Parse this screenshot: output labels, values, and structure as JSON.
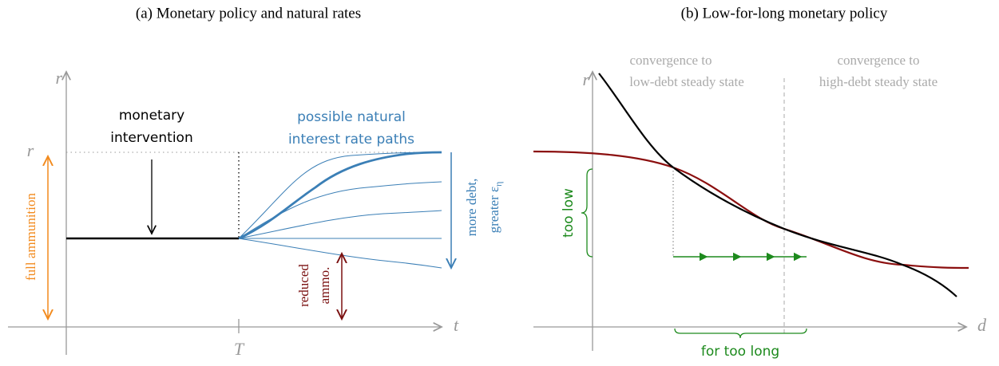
{
  "panels": [
    {
      "title": "(a) Monetary policy and natural rates",
      "y_axis_label": "r",
      "x_axis_label": "t",
      "y_tick": "r",
      "x_tick": "T",
      "intervention_label": [
        "monetary",
        "intervention"
      ],
      "paths_label": [
        "possible natural",
        "interest rate paths"
      ],
      "debt_label": {
        "line1": "more debt,",
        "line2": "greater ε",
        "subscript": "η"
      },
      "full_ammo_label": "full ammunition",
      "reduced_ammo_label": [
        "reduced",
        "ammo."
      ]
    },
    {
      "title": "(b) Low-for-long monetary policy",
      "y_axis_label": "r",
      "x_axis_label": "d",
      "low_debt_label": [
        "convergence to",
        "low-debt steady state"
      ],
      "high_debt_label": [
        "convergence to",
        "high-debt steady state"
      ],
      "too_low_label": "too low",
      "too_long_label": "for too long"
    }
  ]
}
